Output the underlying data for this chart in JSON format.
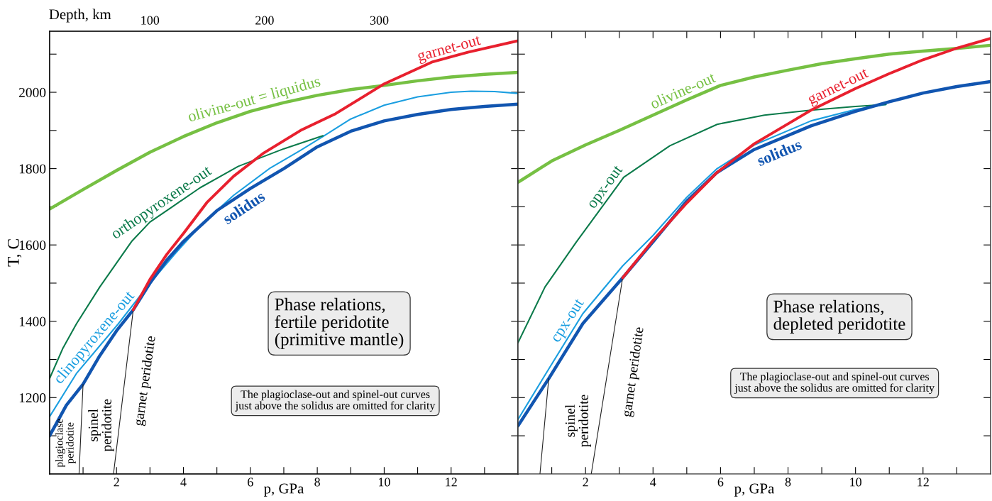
{
  "chart_data": [
    {
      "type": "line",
      "xlabel": "p, GPa",
      "ylabel": "T, C",
      "x2label": "Depth, km",
      "xlim": [
        0,
        14
      ],
      "ylim": [
        1000,
        2160
      ],
      "x2lim": [
        12.5,
        421
      ],
      "xticks": [
        {
          "value": 1,
          "label": null
        },
        2,
        {
          "value": 3,
          "label": null
        },
        4,
        {
          "value": 5,
          "label": null
        },
        6,
        {
          "value": 7,
          "label": null
        },
        8,
        {
          "value": 9,
          "label": null
        },
        10,
        {
          "value": 11,
          "label": null
        },
        12,
        {
          "value": 13,
          "label": null
        }
      ],
      "yticks": [
        {
          "value": 1100,
          "label": null
        },
        1200,
        {
          "value": 1300,
          "label": null
        },
        1400,
        {
          "value": 1500,
          "label": null
        },
        1600,
        {
          "value": 1700,
          "label": null
        },
        1800,
        {
          "value": 1900,
          "label": null
        },
        2000,
        {
          "value": 2100,
          "label": null
        }
      ],
      "x2ticks": [
        100,
        200,
        300
      ],
      "series": [
        {
          "name": "olivine-out = liquidus",
          "color": "#76c043",
          "x": [
            0,
            1,
            2,
            3,
            4,
            5,
            6,
            7,
            8,
            9,
            10,
            11,
            12,
            13,
            14
          ],
          "values": [
            1694,
            1745,
            1795,
            1843,
            1884,
            1920,
            1950,
            1973,
            1992,
            2007,
            2018,
            2030,
            2040,
            2047,
            2052
          ]
        },
        {
          "name": "garnet-out",
          "color": "#e8202e",
          "x": [
            2.5,
            3,
            3.5,
            4,
            4.7,
            5.5,
            6.4,
            7.5,
            8.55,
            10,
            11.45,
            12.5,
            14
          ],
          "values": [
            1430,
            1510,
            1575,
            1630,
            1711,
            1780,
            1841,
            1900,
            1944,
            2022,
            2080,
            2105,
            2135
          ]
        },
        {
          "name": "solidus",
          "color": "#1155b0",
          "x": [
            0,
            0.5,
            1,
            1.5,
            2,
            2.5,
            3,
            3.5,
            4,
            5,
            6,
            7,
            8,
            9,
            10,
            11,
            12,
            13,
            14
          ],
          "values": [
            1100,
            1180,
            1235,
            1310,
            1375,
            1430,
            1500,
            1560,
            1609,
            1690,
            1748,
            1800,
            1857,
            1898,
            1925,
            1942,
            1955,
            1963,
            1969
          ]
        },
        {
          "name": "clinopyroxene-out",
          "color": "#1a9ee0",
          "x": [
            0,
            0.8,
            2.05,
            3,
            3.7,
            4.5,
            5.5,
            6.6,
            7.5,
            8.17,
            9,
            10,
            11,
            12,
            12.6,
            13.3,
            14
          ],
          "values": [
            1150,
            1263,
            1393,
            1500,
            1572,
            1650,
            1730,
            1802,
            1848,
            1884,
            1930,
            1966,
            1988,
            2000,
            2003,
            2002,
            1997
          ]
        },
        {
          "name": "orthopyroxene-out",
          "color": "#0b7a4a",
          "x": [
            0,
            0.4,
            0.8,
            1.5,
            2.45,
            3,
            3.7,
            4.5,
            5.64,
            7,
            8.17
          ],
          "values": [
            1250,
            1330,
            1393,
            1490,
            1609,
            1660,
            1702,
            1750,
            1806,
            1852,
            1886
          ]
        },
        {
          "color": "#222222",
          "x": [
            1,
            0.88
          ],
          "values": [
            1235,
            1000
          ]
        },
        {
          "color": "#222222",
          "x": [
            2.5,
            1.91
          ],
          "values": [
            1430,
            1000
          ]
        }
      ],
      "annotations": [
        "Phase relations,\nfertile peridotite\n(primitive mantle)",
        "The plagioclase-out and spinel-out curves\njust above the solidus are omitted for clarity",
        "plagioclase\nperidotite",
        "spinel\nperidotite",
        "garnet peridotite"
      ]
    },
    {
      "type": "line",
      "xlabel": "p, GPa",
      "tick_labels": "x",
      "xlim": [
        0,
        14
      ],
      "ylim": [
        1000,
        2160
      ],
      "xticks": [
        {
          "value": 1,
          "label": null
        },
        2,
        {
          "value": 3,
          "label": null
        },
        4,
        {
          "value": 5,
          "label": null
        },
        6,
        {
          "value": 7,
          "label": null
        },
        8,
        {
          "value": 9,
          "label": null
        },
        10,
        {
          "value": 11,
          "label": null
        },
        12,
        {
          "value": 13,
          "label": null
        }
      ],
      "yticks": [
        {
          "value": 1100,
          "label": null
        },
        {
          "value": 1200,
          "label": null
        },
        {
          "value": 1300,
          "label": null
        },
        {
          "value": 1400,
          "label": null
        },
        {
          "value": 1500,
          "label": null
        },
        {
          "value": 1600,
          "label": null
        },
        {
          "value": 1700,
          "label": null
        },
        {
          "value": 1800,
          "label": null
        },
        {
          "value": 1900,
          "label": null
        },
        {
          "value": 2000,
          "label": null
        },
        {
          "value": 2100,
          "label": null
        }
      ],
      "series": [
        {
          "name": "olivine-out",
          "color": "#76c043",
          "x": [
            0,
            1,
            2,
            3,
            4,
            5,
            6,
            7,
            8,
            9,
            10,
            11,
            12,
            13,
            14
          ],
          "values": [
            1764,
            1820,
            1862,
            1900,
            1940,
            1980,
            2018,
            2040,
            2058,
            2075,
            2088,
            2100,
            2108,
            2115,
            2123
          ]
        },
        {
          "name": "garnet-out",
          "color": "#e8202e",
          "x": [
            3.1,
            4,
            5,
            5.9,
            7,
            8.68,
            10,
            11,
            12,
            12.95,
            14
          ],
          "values": [
            1514,
            1612,
            1710,
            1790,
            1865,
            1953,
            2010,
            2049,
            2085,
            2114,
            2141
          ]
        },
        {
          "name": "solidus",
          "color": "#1155b0",
          "x": [
            0,
            0.91,
            1.92,
            3.1,
            4,
            5,
            5.9,
            7,
            8.68,
            10,
            11,
            12,
            13,
            14
          ],
          "values": [
            1126,
            1250,
            1394,
            1514,
            1608,
            1715,
            1790,
            1850,
            1912,
            1950,
            1975,
            1998,
            2015,
            2028
          ]
        },
        {
          "name": "cpx-out",
          "color": "#1a9ee0",
          "x": [
            0,
            0.91,
            1.92,
            3.1,
            4,
            5,
            5.9,
            7,
            8.68,
            10,
            10.9
          ],
          "values": [
            1143,
            1275,
            1420,
            1545,
            1625,
            1725,
            1800,
            1862,
            1925,
            1955,
            1968
          ]
        },
        {
          "name": "opx-out",
          "color": "#0b7a4a",
          "x": [
            0,
            0.8,
            1.73,
            3.13,
            4.5,
            5.9,
            7.3,
            8.68,
            10,
            10.9
          ],
          "values": [
            1344,
            1490,
            1608,
            1777,
            1860,
            1916,
            1940,
            1953,
            1963,
            1968
          ]
        },
        {
          "color": "#222222",
          "x": [
            0.91,
            0.65
          ],
          "values": [
            1250,
            1000
          ]
        },
        {
          "color": "#222222",
          "x": [
            3.1,
            2.17
          ],
          "values": [
            1514,
            1000
          ]
        }
      ],
      "annotations": [
        "Phase relations,\ndepleted peridotite",
        "The plagioclase-out and spinel-out curves\njust above the solidus are omitted for clarity",
        "spinel\nperidotite",
        "garnet peridotite"
      ]
    }
  ]
}
